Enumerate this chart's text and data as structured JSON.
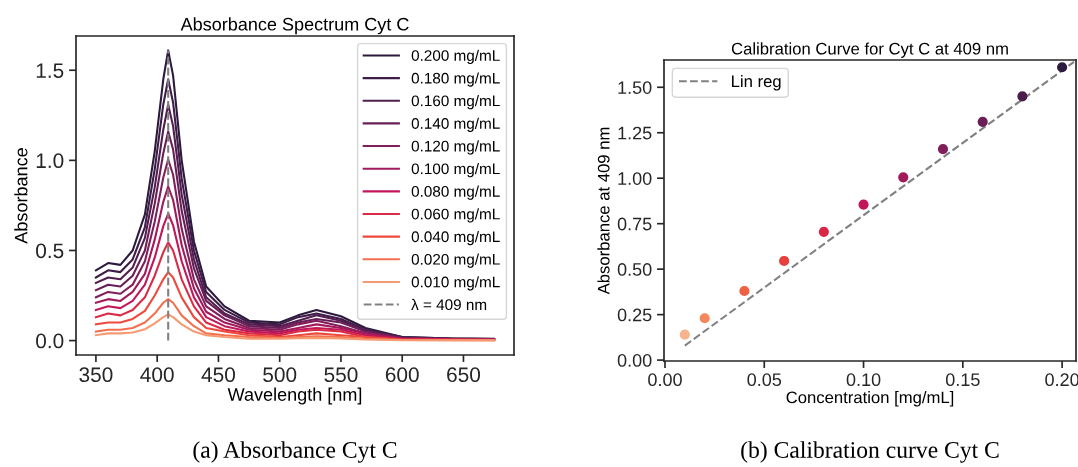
{
  "chart_data": [
    {
      "type": "line",
      "title": "Absorbance Spectrum Cyt C",
      "xlabel": "Wavelength [nm]",
      "ylabel": "Absorbance",
      "x": [
        350,
        360,
        370,
        380,
        390,
        398,
        405,
        409,
        413,
        420,
        430,
        440,
        455,
        475,
        500,
        515,
        530,
        550,
        570,
        600,
        640,
        675
      ],
      "series": [
        {
          "name": "0.200 mg/mL",
          "color": "#2b1a3d",
          "values": [
            0.39,
            0.43,
            0.42,
            0.5,
            0.7,
            1.05,
            1.45,
            1.61,
            1.47,
            1.0,
            0.55,
            0.3,
            0.19,
            0.11,
            0.1,
            0.14,
            0.17,
            0.135,
            0.07,
            0.02,
            0.012,
            0.01
          ]
        },
        {
          "name": "0.180 mg/mL",
          "color": "#3d1c47",
          "values": [
            0.35,
            0.39,
            0.38,
            0.45,
            0.63,
            0.95,
            1.31,
            1.45,
            1.32,
            0.9,
            0.5,
            0.27,
            0.17,
            0.1,
            0.09,
            0.13,
            0.15,
            0.12,
            0.06,
            0.02,
            0.011,
            0.009
          ]
        },
        {
          "name": "0.160 mg/mL",
          "color": "#521e4f",
          "values": [
            0.32,
            0.35,
            0.34,
            0.405,
            0.57,
            0.85,
            1.17,
            1.31,
            1.19,
            0.81,
            0.45,
            0.24,
            0.15,
            0.09,
            0.08,
            0.11,
            0.14,
            0.11,
            0.06,
            0.016,
            0.01,
            0.008
          ]
        },
        {
          "name": "0.140 mg/mL",
          "color": "#681f57",
          "values": [
            0.28,
            0.31,
            0.3,
            0.36,
            0.5,
            0.76,
            1.04,
            1.16,
            1.06,
            0.72,
            0.4,
            0.22,
            0.14,
            0.08,
            0.07,
            0.1,
            0.12,
            0.1,
            0.05,
            0.014,
            0.009,
            0.007
          ]
        },
        {
          "name": "0.120 mg/mL",
          "color": "#801f5c",
          "values": [
            0.24,
            0.27,
            0.26,
            0.31,
            0.44,
            0.66,
            0.905,
            1.005,
            0.92,
            0.62,
            0.34,
            0.19,
            0.12,
            0.07,
            0.06,
            0.09,
            0.11,
            0.08,
            0.04,
            0.012,
            0.008,
            0.006
          ]
        },
        {
          "name": "0.100 mg/mL",
          "color": "#a11a5b",
          "values": [
            0.21,
            0.23,
            0.22,
            0.27,
            0.37,
            0.56,
            0.77,
            0.855,
            0.78,
            0.53,
            0.29,
            0.16,
            0.1,
            0.06,
            0.05,
            0.07,
            0.09,
            0.07,
            0.04,
            0.011,
            0.007,
            0.005
          ]
        },
        {
          "name": "0.080 mg/mL",
          "color": "#c1175a",
          "values": [
            0.17,
            0.19,
            0.18,
            0.22,
            0.31,
            0.46,
            0.635,
            0.705,
            0.64,
            0.44,
            0.24,
            0.13,
            0.08,
            0.05,
            0.04,
            0.06,
            0.07,
            0.06,
            0.03,
            0.009,
            0.006,
            0.005
          ]
        },
        {
          "name": "0.060 mg/mL",
          "color": "#db2a46",
          "values": [
            0.13,
            0.15,
            0.14,
            0.17,
            0.24,
            0.36,
            0.49,
            0.545,
            0.5,
            0.34,
            0.19,
            0.1,
            0.06,
            0.04,
            0.03,
            0.05,
            0.06,
            0.05,
            0.02,
            0.007,
            0.005,
            0.004
          ]
        },
        {
          "name": "0.040 mg/mL",
          "color": "#ed4a3d",
          "values": [
            0.09,
            0.1,
            0.1,
            0.12,
            0.165,
            0.25,
            0.34,
            0.38,
            0.35,
            0.24,
            0.13,
            0.07,
            0.05,
            0.03,
            0.02,
            0.03,
            0.04,
            0.03,
            0.02,
            0.005,
            0.004,
            0.003
          ]
        },
        {
          "name": "0.020 mg/mL",
          "color": "#f3704f",
          "values": [
            0.05,
            0.06,
            0.06,
            0.07,
            0.1,
            0.15,
            0.21,
            0.23,
            0.21,
            0.14,
            0.08,
            0.04,
            0.03,
            0.02,
            0.014,
            0.02,
            0.024,
            0.02,
            0.01,
            0.003,
            0.002,
            0.002
          ]
        },
        {
          "name": "0.010 mg/mL",
          "color": "#f59a72",
          "values": [
            0.03,
            0.04,
            0.04,
            0.045,
            0.063,
            0.095,
            0.13,
            0.145,
            0.13,
            0.09,
            0.05,
            0.03,
            0.02,
            0.01,
            0.01,
            0.013,
            0.015,
            0.012,
            0.006,
            0.002,
            0.002,
            0.001
          ]
        },
        {
          "name": "λ = 409 nm",
          "color": "#808080",
          "line_style": "dashed",
          "x": [
            409,
            409
          ],
          "values": [
            0,
            1.61
          ]
        }
      ],
      "xlim": [
        333.75,
        691.25
      ],
      "xticks": [
        350,
        400,
        450,
        500,
        550,
        600,
        650
      ],
      "ylim": [
        -0.08,
        1.69
      ],
      "yticks": [
        {
          "value": 0,
          "label": "0.0"
        },
        0.5,
        {
          "value": 1,
          "label": "1.0"
        },
        1.5
      ],
      "legend": "top right",
      "grid": false,
      "annotations": [
        "(a) Absorbance Cyt C"
      ]
    },
    {
      "type": "scatter",
      "title": "Calibration Curve for Cyt C at 409 nm",
      "xlabel": "Concentration [mg/mL]",
      "ylabel": "Absorbance at 409 nm",
      "series": [
        {
          "type": "scatter",
          "marker": "circle",
          "x": [
            0.01,
            0.02,
            0.04,
            0.06,
            0.08,
            0.1,
            0.12,
            0.14,
            0.16,
            0.18,
            0.2
          ],
          "values": [
            0.14,
            0.23,
            0.38,
            0.545,
            0.705,
            0.855,
            1.005,
            1.16,
            1.31,
            1.45,
            1.61
          ],
          "colors": [
            "#f6b48e",
            "#f4875e",
            "#f06043",
            "#e83f3f",
            "#d92847",
            "#c1175a",
            "#a11a5b",
            "#801f5c",
            "#6b1f58",
            "#4c1d4b",
            "#2d1a3f"
          ]
        },
        {
          "type": "line",
          "name": "Lin reg",
          "color": "#808080",
          "line_style": "dashed",
          "x": [
            0.01,
            0.206
          ],
          "values": [
            0.08,
            1.64
          ]
        }
      ],
      "xlim": [
        -0.0005,
        0.207
      ],
      "xticks": [
        {
          "value": 0,
          "label": "0.00"
        },
        0.05,
        {
          "value": 0.1,
          "label": "0.10"
        },
        0.15,
        {
          "value": 0.2,
          "label": "0.20"
        }
      ],
      "ylim": [
        -0.005,
        1.65
      ],
      "yticks": [
        {
          "value": 0,
          "label": "0.00"
        },
        0.25,
        {
          "value": 0.5,
          "label": "0.50"
        },
        0.75,
        {
          "value": 1,
          "label": "1.00"
        },
        1.25,
        {
          "value": 1.5,
          "label": "1.50"
        }
      ],
      "legend": "top left",
      "grid": false,
      "annotations": [
        "(b) Calibration curve Cyt C"
      ]
    }
  ]
}
